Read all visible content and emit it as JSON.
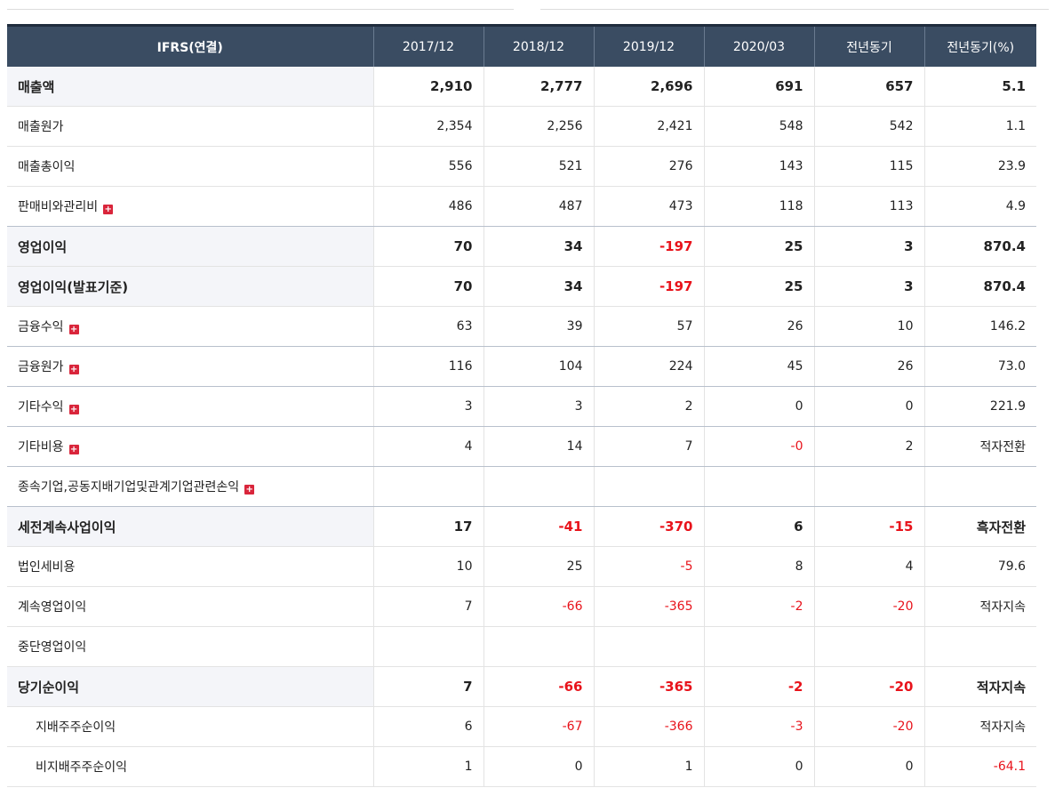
{
  "table": {
    "headers": [
      "IFRS(연결)",
      "2017/12",
      "2018/12",
      "2019/12",
      "2020/03",
      "전년동기",
      "전년동기(%)"
    ],
    "expand_symbol": "+",
    "rows": [
      {
        "label": "매출액",
        "bold": true,
        "sep": false,
        "sub": false,
        "expand": false,
        "values": [
          "2,910",
          "2,777",
          "2,696",
          "691",
          "657",
          "5.1"
        ]
      },
      {
        "label": "매출원가",
        "bold": false,
        "sep": false,
        "sub": false,
        "expand": false,
        "values": [
          "2,354",
          "2,256",
          "2,421",
          "548",
          "542",
          "1.1"
        ]
      },
      {
        "label": "매출총이익",
        "bold": false,
        "sep": false,
        "sub": false,
        "expand": false,
        "values": [
          "556",
          "521",
          "276",
          "143",
          "115",
          "23.9"
        ]
      },
      {
        "label": "판매비와관리비",
        "bold": false,
        "sep": true,
        "sub": false,
        "expand": true,
        "values": [
          "486",
          "487",
          "473",
          "118",
          "113",
          "4.9"
        ]
      },
      {
        "label": "영업이익",
        "bold": true,
        "sep": false,
        "sub": false,
        "expand": false,
        "values": [
          "70",
          "34",
          "-197",
          "25",
          "3",
          "870.4"
        ]
      },
      {
        "label": "영업이익(발표기준)",
        "bold": true,
        "sep": false,
        "sub": false,
        "expand": false,
        "values": [
          "70",
          "34",
          "-197",
          "25",
          "3",
          "870.4"
        ]
      },
      {
        "label": "금융수익",
        "bold": false,
        "sep": true,
        "sub": false,
        "expand": true,
        "values": [
          "63",
          "39",
          "57",
          "26",
          "10",
          "146.2"
        ]
      },
      {
        "label": "금융원가",
        "bold": false,
        "sep": true,
        "sub": false,
        "expand": true,
        "values": [
          "116",
          "104",
          "224",
          "45",
          "26",
          "73.0"
        ]
      },
      {
        "label": "기타수익",
        "bold": false,
        "sep": true,
        "sub": false,
        "expand": true,
        "values": [
          "3",
          "3",
          "2",
          "0",
          "0",
          "221.9"
        ]
      },
      {
        "label": "기타비용",
        "bold": false,
        "sep": true,
        "sub": false,
        "expand": true,
        "values": [
          "4",
          "14",
          "7",
          "-0",
          "2",
          "적자전환"
        ]
      },
      {
        "label": "종속기업,공동지배기업및관계기업관련손익",
        "bold": false,
        "sep": true,
        "sub": false,
        "expand": true,
        "values": [
          "",
          "",
          "",
          "",
          "",
          ""
        ]
      },
      {
        "label": "세전계속사업이익",
        "bold": true,
        "sep": false,
        "sub": false,
        "expand": false,
        "values": [
          "17",
          "-41",
          "-370",
          "6",
          "-15",
          "흑자전환"
        ]
      },
      {
        "label": "법인세비용",
        "bold": false,
        "sep": false,
        "sub": false,
        "expand": false,
        "values": [
          "10",
          "25",
          "-5",
          "8",
          "4",
          "79.6"
        ]
      },
      {
        "label": "계속영업이익",
        "bold": false,
        "sep": false,
        "sub": false,
        "expand": false,
        "values": [
          "7",
          "-66",
          "-365",
          "-2",
          "-20",
          "적자지속"
        ]
      },
      {
        "label": "중단영업이익",
        "bold": false,
        "sep": false,
        "sub": false,
        "expand": false,
        "values": [
          "",
          "",
          "",
          "",
          "",
          ""
        ]
      },
      {
        "label": "당기순이익",
        "bold": true,
        "sep": false,
        "sub": false,
        "expand": false,
        "values": [
          "7",
          "-66",
          "-365",
          "-2",
          "-20",
          "적자지속"
        ]
      },
      {
        "label": "지배주주순이익",
        "bold": false,
        "sep": false,
        "sub": true,
        "expand": false,
        "values": [
          "6",
          "-67",
          "-366",
          "-3",
          "-20",
          "적자지속"
        ]
      },
      {
        "label": "비지배주주순이익",
        "bold": false,
        "sep": false,
        "sub": true,
        "expand": false,
        "values": [
          "1",
          "0",
          "1",
          "0",
          "0",
          "-64.1"
        ]
      }
    ]
  },
  "colors": {
    "header_bg": "#3a4c62",
    "negative": "#e8131b",
    "expand_icon": "#d9253b",
    "bold_label_bg": "#f4f5f9"
  }
}
